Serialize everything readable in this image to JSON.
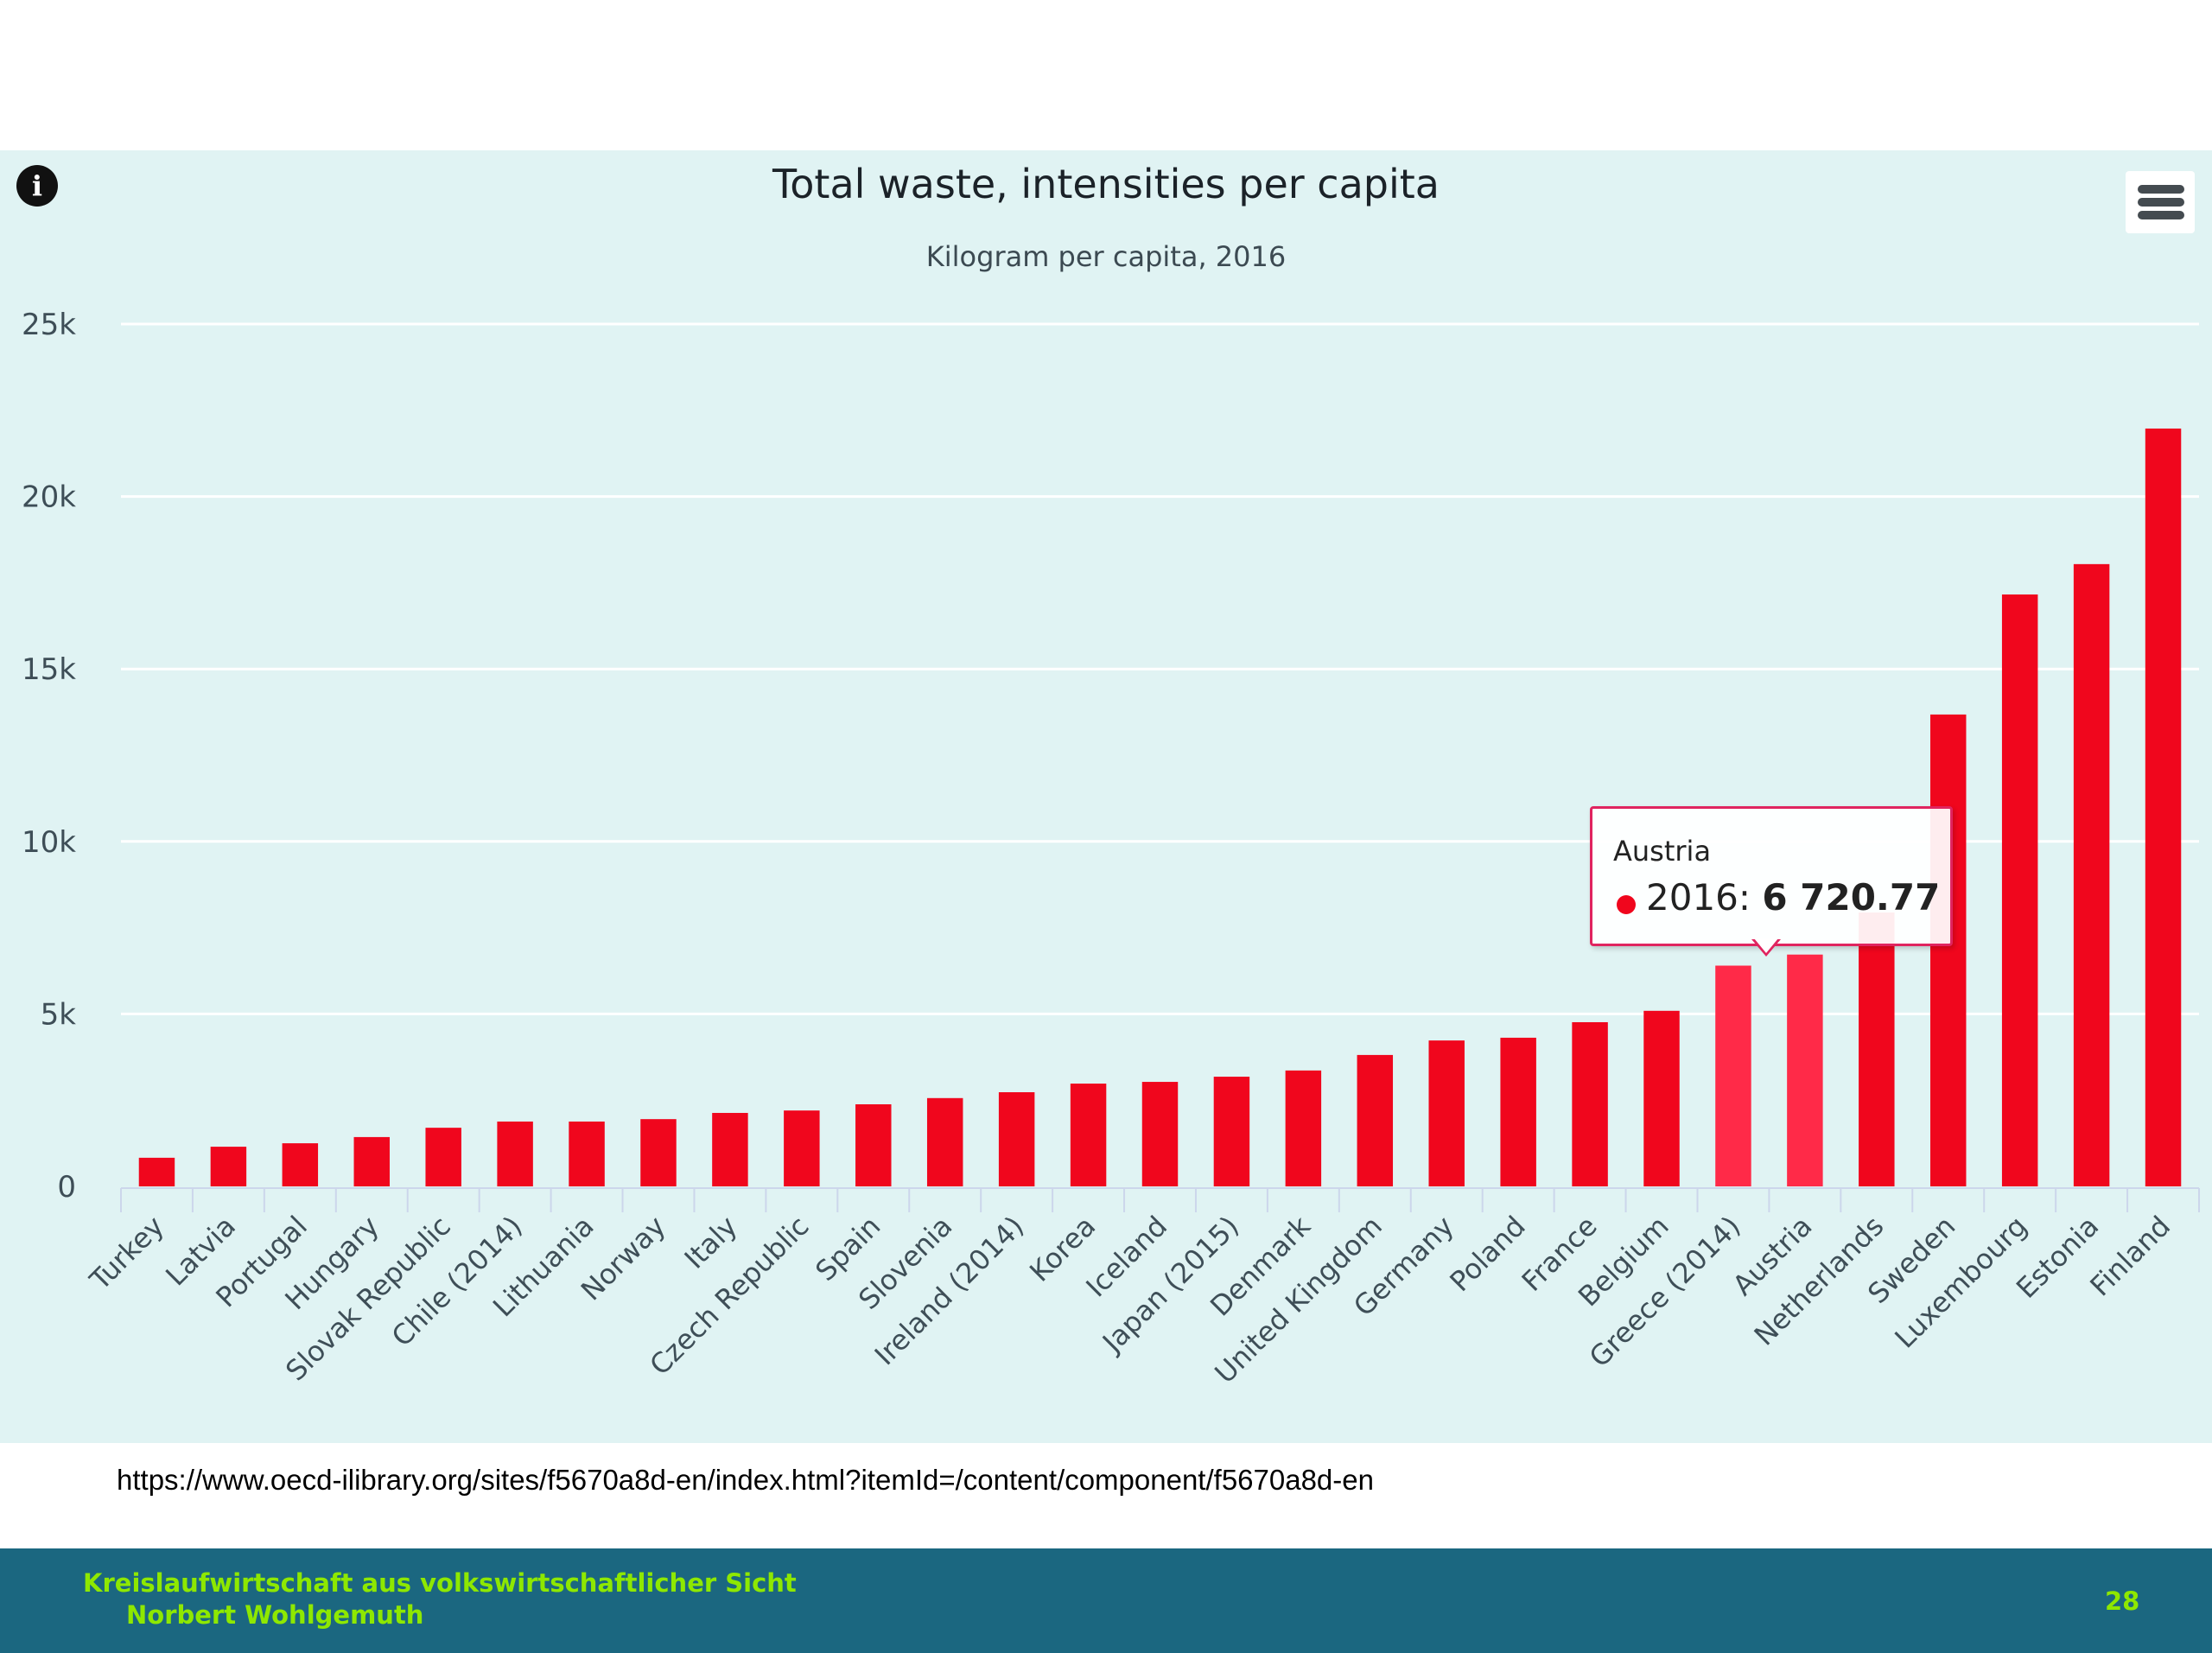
{
  "chart_data": {
    "type": "bar",
    "title": "Total waste, intensities per capita",
    "subtitle": "Kilogram per capita, 2016",
    "xlabel": "",
    "ylabel": "",
    "ylim": [
      0,
      25000
    ],
    "yticks": [
      0,
      5000,
      10000,
      15000,
      20000,
      25000
    ],
    "ytick_labels": [
      "0",
      "5k",
      "10k",
      "15k",
      "20k",
      "25k"
    ],
    "grid": true,
    "legend": "none",
    "bar_color": "#f0061d",
    "highlight_color": "#ff2a48",
    "categories": [
      "Turkey",
      "Latvia",
      "Portugal",
      "Hungary",
      "Slovak Republic",
      "Chile (2014)",
      "Lithuania",
      "Norway",
      "Italy",
      "Czech Republic",
      "Spain",
      "Slovenia",
      "Ireland (2014)",
      "Korea",
      "Iceland",
      "Japan (2015)",
      "Denmark",
      "United Kingdom",
      "Germany",
      "Poland",
      "France",
      "Belgium",
      "Greece (2014)",
      "Austria",
      "Netherlands",
      "Sweden",
      "Luxembourg",
      "Estonia",
      "Finland"
    ],
    "values": [
      830,
      1150,
      1250,
      1430,
      1700,
      1880,
      1880,
      1950,
      2130,
      2200,
      2380,
      2560,
      2730,
      2980,
      3030,
      3180,
      3360,
      3810,
      4230,
      4310,
      4760,
      5090,
      6400,
      6720.77,
      7940,
      13680,
      17160,
      18040,
      21970
    ],
    "highlighted": [
      "Greece (2014)",
      "Austria"
    ],
    "tooltip": {
      "country": "Austria",
      "series": "2016",
      "value_text": "6 720.77",
      "dot_color": "#f0061d"
    }
  },
  "icons": {
    "info": "i",
    "menu": "hamburger-menu-icon"
  },
  "source": {
    "url_text": "https://www.oecd-ilibrary.org/sites/f5670a8d-en/index.html?itemId=/content/component/f5670a8d-en"
  },
  "footer": {
    "title": "Kreislaufwirtschaft aus volkswirtschaftlicher Sicht",
    "author": "Norbert Wohlgemuth",
    "page_number": "28"
  }
}
